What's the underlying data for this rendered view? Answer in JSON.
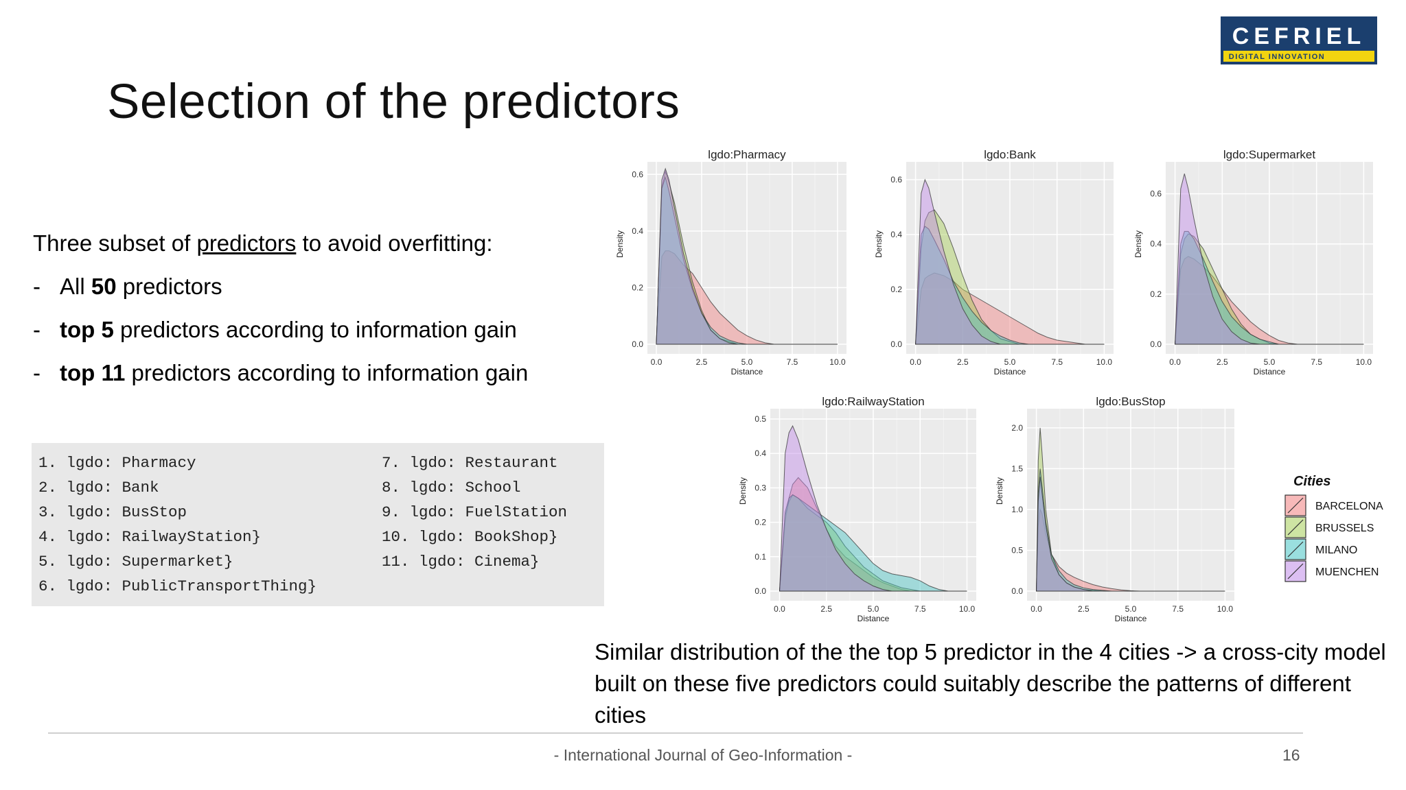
{
  "slide": {
    "title": "Selection of the predictors",
    "intro_pre": "Three subset of ",
    "intro_link": "predictors",
    "intro_post": " to avoid overfitting:",
    "bullets": [
      {
        "dash": "-",
        "pre": "All ",
        "bold": "50",
        "post": " predictors"
      },
      {
        "dash": "-",
        "pre": "",
        "bold": "top 5",
        "post": " predictors according to information gain"
      },
      {
        "dash": "-",
        "pre": "",
        "bold": "top 11",
        "post": " predictors according to information gain"
      }
    ],
    "predictor_list_left": [
      "1. lgdo: Pharmacy",
      "2. lgdo: Bank",
      "3. lgdo: BusStop",
      "4. lgdo: RailwayStation}",
      "5. lgdo: Supermarket}",
      "6. lgdo: PublicTransportThing}"
    ],
    "predictor_list_right": [
      "7. lgdo: Restaurant",
      "8. lgdo: School",
      "9. lgdo: FuelStation",
      "10. lgdo: BookShop}",
      "11. lgdo: Cinema}"
    ],
    "caption": "Similar distribution of the the top 5 predictor in the 4 cities ->  a cross-city model built on these five predictors could suitably describe the patterns of different cities",
    "footer": "- International Journal of Geo-Information -",
    "page_number": "16",
    "logo": {
      "text": "CEFRIEL",
      "subtext": "DIGITAL INNOVATION",
      "colors": {
        "bg": "#1b3f6e",
        "band": "#f2d410"
      }
    }
  },
  "chart_data": [
    {
      "type": "area",
      "title": "lgdo:Pharmacy",
      "xlabel": "Distance",
      "ylabel": "Density",
      "xlim": [
        0,
        10
      ],
      "ylim": [
        0,
        0.62
      ],
      "xticks": [
        "0.0",
        "2.5",
        "5.0",
        "7.5",
        "10.0"
      ],
      "yticks": [
        {
          "v": 0.0,
          "l": "0.0"
        },
        {
          "v": 0.2,
          "l": "0.2"
        },
        {
          "v": 0.4,
          "l": "0.4"
        },
        {
          "v": 0.6,
          "l": "0.6"
        }
      ],
      "x": [
        0,
        0.3,
        0.5,
        0.7,
        1,
        1.5,
        2,
        2.5,
        3,
        3.5,
        4,
        4.5,
        5,
        5.5,
        6,
        6.5,
        7
      ],
      "series": [
        {
          "name": "BARCELONA",
          "values": [
            0,
            0.31,
            0.33,
            0.33,
            0.32,
            0.28,
            0.25,
            0.2,
            0.15,
            0.11,
            0.08,
            0.05,
            0.03,
            0.015,
            0.005,
            0,
            0
          ]
        },
        {
          "name": "BRUSSELS",
          "values": [
            0,
            0.55,
            0.61,
            0.57,
            0.5,
            0.35,
            0.22,
            0.12,
            0.05,
            0.02,
            0.01,
            0,
            0,
            0,
            0,
            0,
            0
          ]
        },
        {
          "name": "MILANO",
          "values": [
            0,
            0.55,
            0.59,
            0.54,
            0.45,
            0.3,
            0.19,
            0.11,
            0.06,
            0.03,
            0.015,
            0.005,
            0,
            0,
            0,
            0,
            0
          ]
        },
        {
          "name": "MUENCHEN",
          "values": [
            0,
            0.58,
            0.62,
            0.58,
            0.48,
            0.32,
            0.2,
            0.11,
            0.05,
            0.02,
            0.005,
            0,
            0,
            0,
            0,
            0,
            0
          ]
        }
      ]
    },
    {
      "type": "area",
      "title": "lgdo:Bank",
      "xlabel": "Distance",
      "ylabel": "Density",
      "xlim": [
        0,
        10
      ],
      "ylim": [
        0,
        0.64
      ],
      "xticks": [
        "0.0",
        "2.5",
        "5.0",
        "7.5",
        "10.0"
      ],
      "yticks": [
        {
          "v": 0.0,
          "l": "0.0"
        },
        {
          "v": 0.2,
          "l": "0.2"
        },
        {
          "v": 0.4,
          "l": "0.4"
        },
        {
          "v": 0.6,
          "l": "0.6"
        }
      ],
      "x": [
        0,
        0.3,
        0.5,
        0.7,
        1,
        1.5,
        2,
        2.5,
        3,
        3.5,
        4,
        4.5,
        5,
        5.5,
        6,
        6.5,
        7,
        7.5,
        8,
        8.5,
        9,
        9.5,
        10
      ],
      "series": [
        {
          "name": "BARCELONA",
          "values": [
            0,
            0.2,
            0.24,
            0.25,
            0.26,
            0.25,
            0.23,
            0.2,
            0.18,
            0.16,
            0.14,
            0.12,
            0.1,
            0.08,
            0.06,
            0.04,
            0.025,
            0.015,
            0.01,
            0.005,
            0,
            0,
            0
          ]
        },
        {
          "name": "BRUSSELS",
          "values": [
            0,
            0.35,
            0.45,
            0.48,
            0.49,
            0.44,
            0.35,
            0.25,
            0.16,
            0.09,
            0.05,
            0.02,
            0.01,
            0,
            0,
            0,
            0,
            0,
            0,
            0,
            0,
            0,
            0
          ]
        },
        {
          "name": "MILANO",
          "values": [
            0,
            0.4,
            0.43,
            0.42,
            0.38,
            0.31,
            0.23,
            0.17,
            0.12,
            0.08,
            0.05,
            0.03,
            0.015,
            0.005,
            0,
            0,
            0,
            0,
            0,
            0,
            0,
            0,
            0
          ]
        },
        {
          "name": "MUENCHEN",
          "values": [
            0,
            0.55,
            0.6,
            0.57,
            0.48,
            0.34,
            0.22,
            0.13,
            0.07,
            0.03,
            0.01,
            0,
            0,
            0,
            0,
            0,
            0,
            0,
            0,
            0,
            0,
            0,
            0
          ]
        }
      ]
    },
    {
      "type": "area",
      "title": "lgdo:Supermarket",
      "xlabel": "Distance",
      "ylabel": "Density",
      "xlim": [
        0,
        10
      ],
      "ylim": [
        0,
        0.7
      ],
      "xticks": [
        "0.0",
        "2.5",
        "5.0",
        "7.5",
        "10.0"
      ],
      "yticks": [
        {
          "v": 0.0,
          "l": "0.0"
        },
        {
          "v": 0.2,
          "l": "0.2"
        },
        {
          "v": 0.4,
          "l": "0.4"
        },
        {
          "v": 0.6,
          "l": "0.6"
        }
      ],
      "x": [
        0,
        0.3,
        0.5,
        0.7,
        1,
        1.5,
        2,
        2.5,
        3,
        3.5,
        4,
        4.5,
        5,
        5.5,
        6,
        6.5
      ],
      "series": [
        {
          "name": "BARCELONA",
          "values": [
            0,
            0.3,
            0.34,
            0.35,
            0.34,
            0.31,
            0.27,
            0.22,
            0.17,
            0.13,
            0.09,
            0.06,
            0.035,
            0.015,
            0.005,
            0
          ]
        },
        {
          "name": "BRUSSELS",
          "values": [
            0,
            0.36,
            0.42,
            0.44,
            0.43,
            0.38,
            0.3,
            0.22,
            0.14,
            0.08,
            0.04,
            0.02,
            0.005,
            0,
            0,
            0
          ]
        },
        {
          "name": "MILANO",
          "values": [
            0,
            0.4,
            0.45,
            0.45,
            0.42,
            0.34,
            0.25,
            0.17,
            0.11,
            0.07,
            0.04,
            0.02,
            0.01,
            0,
            0,
            0
          ]
        },
        {
          "name": "MUENCHEN",
          "values": [
            0,
            0.62,
            0.68,
            0.62,
            0.5,
            0.32,
            0.19,
            0.1,
            0.05,
            0.02,
            0.005,
            0,
            0,
            0,
            0,
            0
          ]
        }
      ]
    },
    {
      "type": "area",
      "title": "lgdo:RailwayStation",
      "xlabel": "Distance",
      "ylabel": "Density",
      "xlim": [
        0,
        10
      ],
      "ylim": [
        0,
        0.51
      ],
      "xticks": [
        "0.0",
        "2.5",
        "5.0",
        "7.5",
        "10.0"
      ],
      "yticks": [
        {
          "v": 0.0,
          "l": "0.0"
        },
        {
          "v": 0.1,
          "l": "0.1"
        },
        {
          "v": 0.2,
          "l": "0.2"
        },
        {
          "v": 0.3,
          "l": "0.3"
        },
        {
          "v": 0.4,
          "l": "0.4"
        },
        {
          "v": 0.5,
          "l": "0.5"
        }
      ],
      "x": [
        0,
        0.3,
        0.5,
        0.7,
        1,
        1.5,
        2,
        2.5,
        3,
        3.5,
        4,
        4.5,
        5,
        5.5,
        6,
        6.5,
        7,
        7.5,
        8,
        8.5,
        9
      ],
      "series": [
        {
          "name": "BARCELONA",
          "values": [
            0,
            0.2,
            0.27,
            0.31,
            0.33,
            0.3,
            0.24,
            0.18,
            0.13,
            0.1,
            0.08,
            0.06,
            0.04,
            0.025,
            0.015,
            0.005,
            0,
            0,
            0,
            0,
            0
          ]
        },
        {
          "name": "BRUSSELS",
          "values": [
            0,
            0.22,
            0.26,
            0.28,
            0.27,
            0.24,
            0.22,
            0.2,
            0.17,
            0.13,
            0.1,
            0.07,
            0.05,
            0.03,
            0.02,
            0.01,
            0.005,
            0,
            0,
            0,
            0
          ]
        },
        {
          "name": "MILANO",
          "values": [
            0,
            0.23,
            0.27,
            0.28,
            0.27,
            0.25,
            0.23,
            0.21,
            0.19,
            0.17,
            0.14,
            0.11,
            0.08,
            0.06,
            0.05,
            0.045,
            0.04,
            0.03,
            0.015,
            0.005,
            0
          ]
        },
        {
          "name": "MUENCHEN",
          "values": [
            0,
            0.4,
            0.46,
            0.48,
            0.44,
            0.34,
            0.25,
            0.18,
            0.12,
            0.08,
            0.05,
            0.03,
            0.015,
            0.005,
            0,
            0,
            0,
            0,
            0,
            0,
            0
          ]
        }
      ]
    },
    {
      "type": "area",
      "title": "lgdo:BusStop",
      "xlabel": "Distance",
      "ylabel": "Density",
      "xlim": [
        0,
        10
      ],
      "ylim": [
        0,
        2.15
      ],
      "xticks": [
        "0.0",
        "2.5",
        "5.0",
        "7.5",
        "10.0"
      ],
      "yticks": [
        {
          "v": 0.0,
          "l": "0.0"
        },
        {
          "v": 0.5,
          "l": "0.5"
        },
        {
          "v": 1.0,
          "l": "1.0"
        },
        {
          "v": 1.5,
          "l": "1.5"
        },
        {
          "v": 2.0,
          "l": "2.0"
        }
      ],
      "x": [
        0,
        0.1,
        0.2,
        0.3,
        0.5,
        0.8,
        1.2,
        1.6,
        2,
        2.5,
        3,
        3.5,
        4,
        4.5,
        5,
        5.5
      ],
      "series": [
        {
          "name": "BARCELONA",
          "values": [
            0,
            0.8,
            1.0,
            0.95,
            0.7,
            0.45,
            0.3,
            0.22,
            0.17,
            0.12,
            0.08,
            0.05,
            0.03,
            0.015,
            0.005,
            0
          ]
        },
        {
          "name": "BRUSSELS",
          "values": [
            0,
            1.6,
            2.0,
            1.7,
            1.0,
            0.45,
            0.2,
            0.1,
            0.05,
            0.02,
            0.01,
            0,
            0,
            0,
            0,
            0
          ]
        },
        {
          "name": "MILANO",
          "values": [
            0,
            1.2,
            1.5,
            1.3,
            0.85,
            0.45,
            0.25,
            0.14,
            0.08,
            0.04,
            0.02,
            0.01,
            0,
            0,
            0,
            0
          ]
        },
        {
          "name": "MUENCHEN",
          "values": [
            0,
            1.1,
            1.4,
            1.2,
            0.8,
            0.4,
            0.2,
            0.1,
            0.05,
            0.02,
            0,
            0,
            0,
            0,
            0,
            0
          ]
        }
      ]
    }
  ],
  "legend": {
    "title": "Cities",
    "entries": [
      {
        "name": "BARCELONA",
        "color": "#f08080"
      },
      {
        "name": "BRUSSELS",
        "color": "#a6cd57"
      },
      {
        "name": "MILANO",
        "color": "#47c4c4"
      },
      {
        "name": "MUENCHEN",
        "color": "#c08ae8"
      }
    ]
  }
}
